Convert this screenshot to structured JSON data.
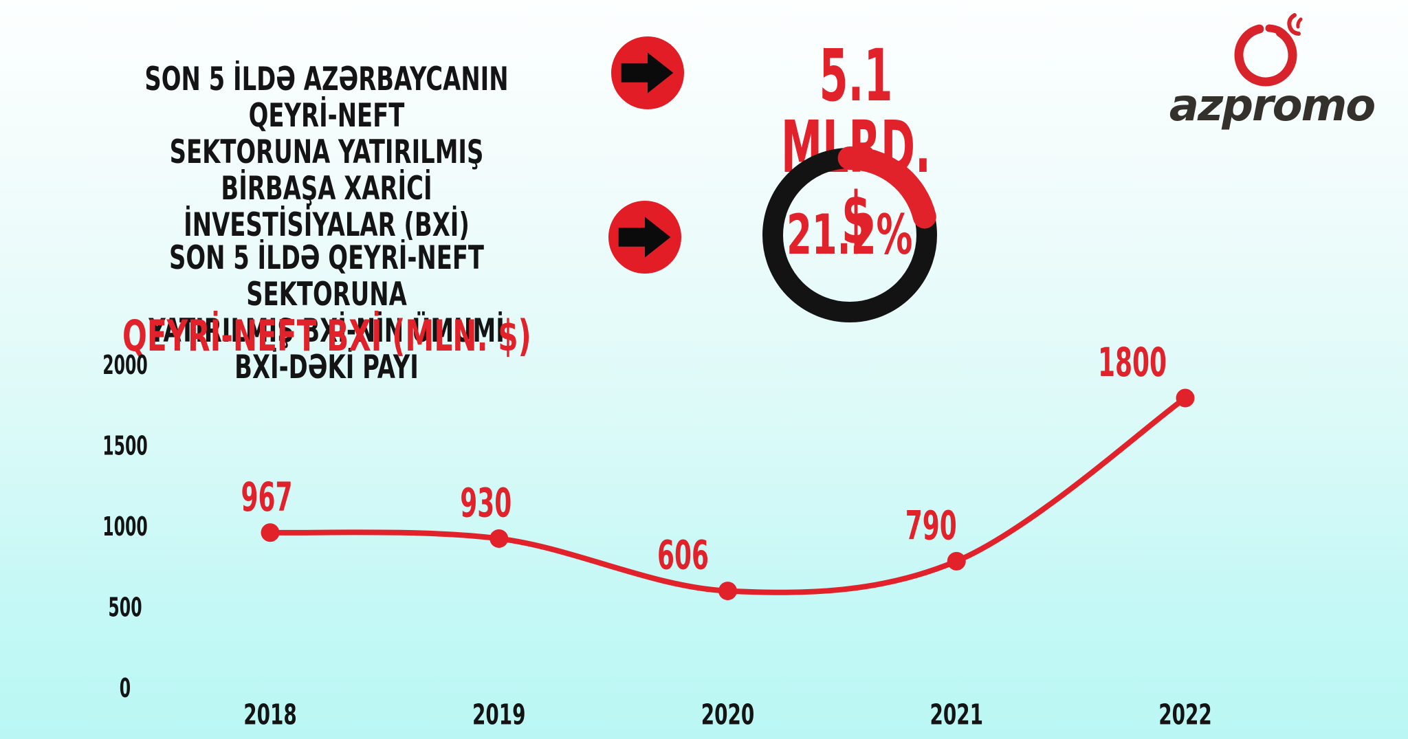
{
  "colors": {
    "accent_red": "#e2222a",
    "shape_red": "#e21d25",
    "black": "#141414",
    "logo_red": "#d8232a",
    "logo_gray": "#34302c",
    "bg_top": "#fdffff",
    "bg_bottom": "#baf7f4"
  },
  "icons": {
    "arrow1": "right-arrow-icon",
    "arrow2": "right-arrow-icon",
    "logo": "azpromo-pomegranate-icon"
  },
  "header": {
    "stat1": {
      "label_lines": [
        "SON 5 İLDƏ AZƏRBAYCANIN QEYRİ-NEFT",
        "SEKTORUNA YATIRILMIŞ BİRBAŞA XARİCİ",
        "İNVESTİSİYALAR (BXİ)"
      ],
      "value": "5.1 MLRD. $"
    },
    "stat2": {
      "label_lines": [
        "SON 5 İLDƏ QEYRİ-NEFT SEKTORUNA",
        "YATIRILMIŞ BXİ-NİN ÜMUMİ BXİ-DƏKİ PAYI"
      ],
      "value_text": "21.2%",
      "percent": 21.2
    }
  },
  "logo": {
    "wordmark": "azpromo"
  },
  "chart_data": {
    "type": "line",
    "title": "QEYRİ-NEFT BXİ (MLN. $)",
    "categories": [
      "2018",
      "2019",
      "2020",
      "2021",
      "2022"
    ],
    "values": [
      967,
      930,
      606,
      790,
      1800
    ],
    "series": [
      {
        "name": "Qeyri-neft BXİ (mln. $)",
        "values": [
          967,
          930,
          606,
          790,
          1800
        ]
      }
    ],
    "y_ticks": [
      0,
      500,
      1000,
      1500,
      2000
    ],
    "ylim": [
      0,
      2000
    ],
    "xlabel": "",
    "ylabel": "MLN. $",
    "grid": false,
    "legend": "none",
    "line_color": "#e2222a",
    "marker": "filled-circle",
    "smooth": true
  }
}
